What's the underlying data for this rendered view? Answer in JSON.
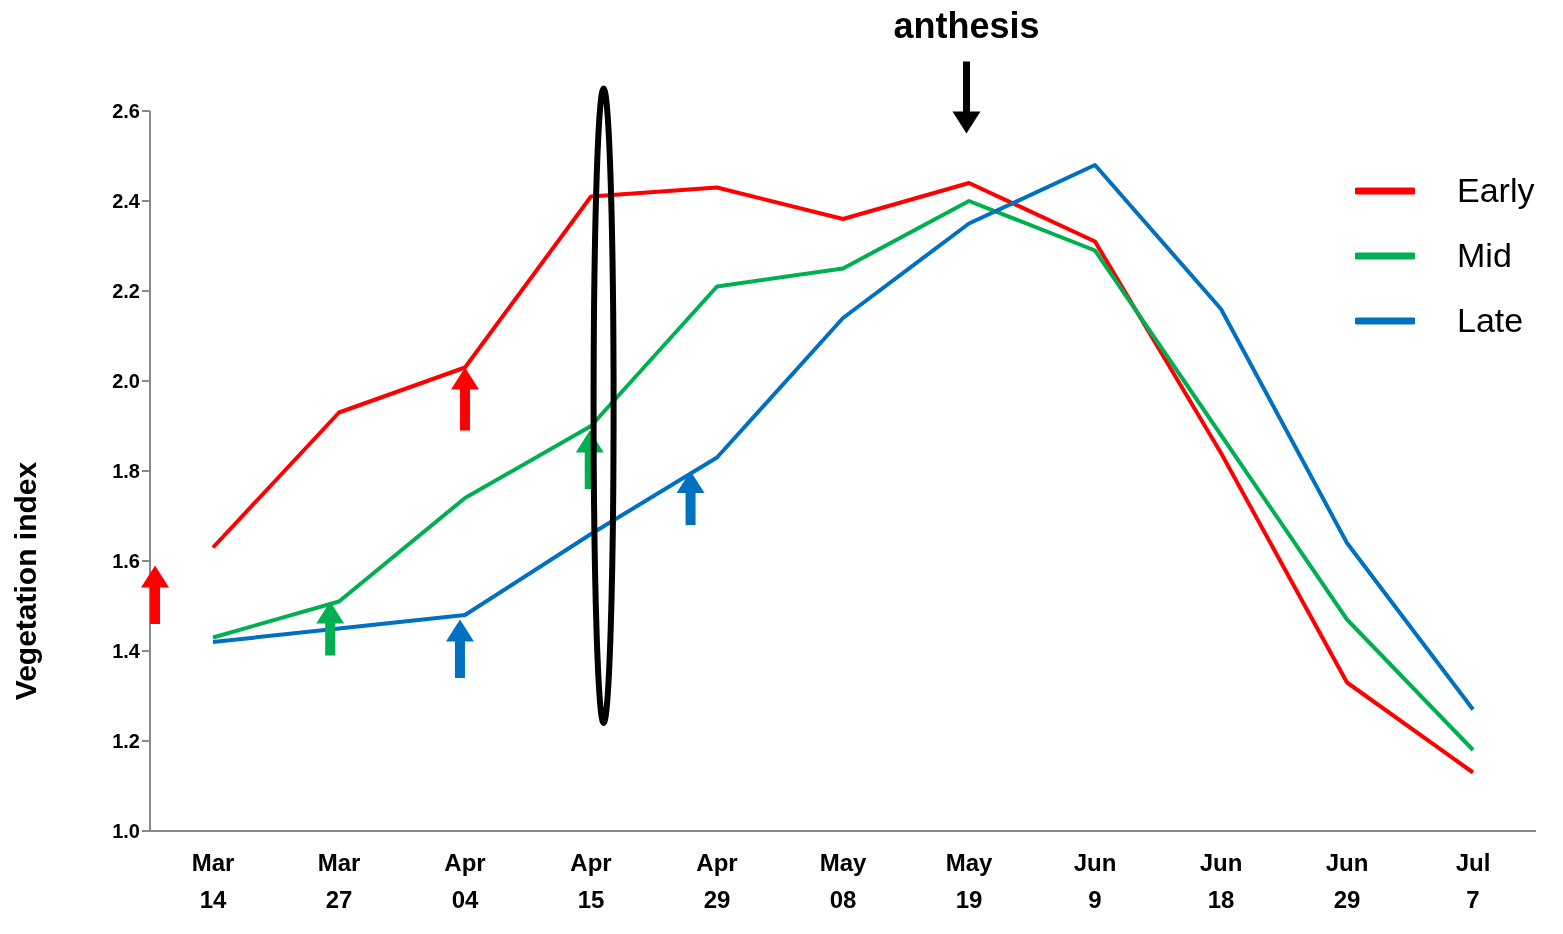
{
  "chart_data": {
    "type": "line",
    "ylabel": "Vegetation index",
    "categories": [
      "Mar 14",
      "Mar 27",
      "Apr 04",
      "Apr 15",
      "Apr 29",
      "May 08",
      "May 19",
      "Jun 9",
      "Jun 18",
      "Jun 29",
      "Jul 7"
    ],
    "series": [
      {
        "name": "Early",
        "color": "#ff0000",
        "values": [
          1.63,
          1.93,
          2.03,
          2.41,
          2.43,
          2.36,
          2.44,
          2.31,
          1.84,
          1.33,
          1.13
        ]
      },
      {
        "name": "Mid",
        "color": "#00b050",
        "values": [
          1.43,
          1.51,
          1.74,
          1.9,
          2.21,
          2.25,
          2.4,
          2.29,
          1.88,
          1.47,
          1.18
        ]
      },
      {
        "name": "Late",
        "color": "#0070c0",
        "values": [
          1.42,
          1.45,
          1.48,
          1.66,
          1.83,
          2.14,
          2.35,
          2.48,
          2.16,
          1.64,
          1.27
        ]
      }
    ],
    "ylim": [
      1.0,
      2.6
    ],
    "yticks": [
      {
        "value": 1,
        "label": "1.0"
      },
      1.2,
      1.4,
      1.6,
      1.8,
      {
        "value": 2,
        "label": "2.0"
      },
      2.2,
      2.4,
      2.6
    ],
    "annotations": [
      "anthesis"
    ],
    "grid": false,
    "legend": "top right",
    "marker": "none",
    "line_style": "solid"
  }
}
